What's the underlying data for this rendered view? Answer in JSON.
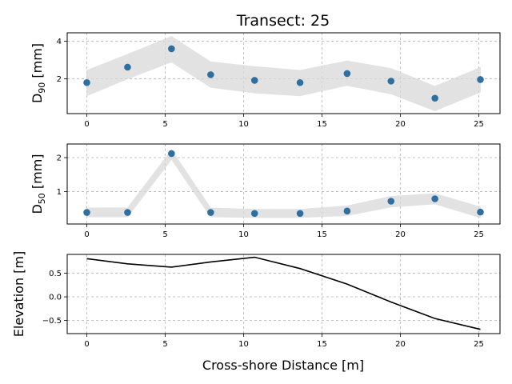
{
  "chart_data": {
    "title": "Transect: 25",
    "xlabel": "Cross-shore Distance [m]",
    "x": [
      0,
      2.6,
      5.4,
      7.9,
      10.7,
      13.6,
      16.6,
      19.4,
      22.2,
      25.1
    ],
    "x_ticks": [
      0,
      5,
      10,
      15,
      20,
      25
    ],
    "xlim": [
      -1.25,
      26.35
    ],
    "panels": [
      {
        "type": "scatter",
        "ylabel_base": "D",
        "ylabel_sub": "90",
        "ylabel_unit": " [mm]",
        "ylim": [
          0.15,
          4.45
        ],
        "y_ticks": [
          2,
          4
        ],
        "values": [
          1.8,
          2.62,
          3.6,
          2.22,
          1.92,
          1.8,
          2.28,
          1.88,
          0.97,
          1.96
        ],
        "band_upper": [
          2.45,
          3.3,
          4.25,
          2.9,
          2.65,
          2.45,
          2.95,
          2.55,
          1.6,
          2.6
        ],
        "band_lower": [
          1.1,
          2.0,
          2.9,
          1.55,
          1.25,
          1.1,
          1.65,
          1.2,
          0.3,
          1.3
        ],
        "marker_color": "#2f6f9f",
        "band_color": "#d9d9d9"
      },
      {
        "type": "scatter",
        "ylabel_base": "D",
        "ylabel_sub": "50",
        "ylabel_unit": " [mm]",
        "ylim": [
          0.05,
          2.4
        ],
        "y_ticks": [
          1,
          2
        ],
        "values": [
          0.39,
          0.39,
          2.12,
          0.39,
          0.36,
          0.36,
          0.43,
          0.72,
          0.79,
          0.4
        ],
        "band_upper": [
          0.52,
          0.52,
          2.22,
          0.52,
          0.48,
          0.48,
          0.58,
          0.86,
          0.94,
          0.55
        ],
        "band_lower": [
          0.26,
          0.26,
          1.95,
          0.26,
          0.24,
          0.24,
          0.3,
          0.55,
          0.64,
          0.24
        ],
        "marker_color": "#2f6f9f",
        "band_color": "#d9d9d9"
      },
      {
        "type": "line",
        "ylabel": "Elevation [m]",
        "ylim": [
          -0.78,
          0.9
        ],
        "y_ticks": [
          0.5,
          0.0,
          -0.5
        ],
        "y_tick_labels": [
          "0.5",
          "0.0",
          "−0.5"
        ],
        "values": [
          0.81,
          0.7,
          0.63,
          0.74,
          0.84,
          0.6,
          0.27,
          -0.11,
          -0.46,
          -0.69
        ],
        "line_color": "#000000"
      }
    ],
    "grid": true
  }
}
